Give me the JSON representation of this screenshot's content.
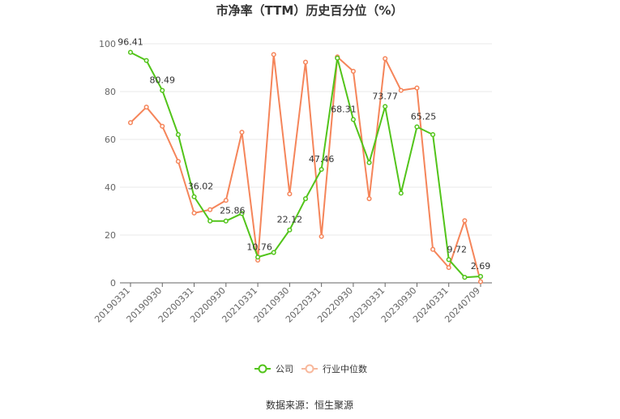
{
  "chart_data": {
    "type": "line",
    "title": "市净率（TTM）历史百分位（%）",
    "xlabel": "",
    "ylabel": "",
    "ylim": [
      0,
      100
    ],
    "yticks": [
      0,
      20,
      40,
      60,
      80,
      100
    ],
    "grid": true,
    "legend_position": "bottom",
    "x": [
      "20190331",
      "20190630",
      "20190930",
      "20191231",
      "20200331",
      "20200630",
      "20200930",
      "20201231",
      "20210331",
      "20210630",
      "20210930",
      "20211231",
      "20220331",
      "20220630",
      "20220930",
      "20221231",
      "20230331",
      "20230630",
      "20230930",
      "20231231",
      "20240331",
      "20240630",
      "20240709"
    ],
    "x_tick_labels": [
      "20190331",
      "20190930",
      "20200331",
      "20200930",
      "20210331",
      "20210930",
      "20220331",
      "20220930",
      "20230331",
      "20230930",
      "20240331",
      "20240709"
    ],
    "x_tick_indices": [
      0,
      2,
      4,
      6,
      8,
      10,
      12,
      14,
      16,
      18,
      20,
      22
    ],
    "series": [
      {
        "name": "公司",
        "color": "#52c41a",
        "values": [
          96.41,
          93.0,
          80.49,
          62.0,
          36.02,
          25.86,
          25.86,
          29.0,
          10.76,
          12.7,
          22.12,
          35.2,
          47.46,
          94.0,
          68.31,
          50.3,
          73.77,
          37.5,
          65.25,
          62.0,
          9.72,
          2.3,
          2.69
        ],
        "labels": {
          "0": "96.41",
          "2": "80.49",
          "4": "36.02",
          "6": "25.86",
          "8": "10.76",
          "10": "22.12",
          "12": "47.46",
          "14": "68.31",
          "16": "73.77",
          "18": "65.25",
          "20": "9.72",
          "22": "2.69"
        }
      },
      {
        "name": "行业中位数",
        "color": "#f5855a",
        "values": [
          67.0,
          73.5,
          65.5,
          50.8,
          29.2,
          30.6,
          34.5,
          63.0,
          9.5,
          95.5,
          37.2,
          92.3,
          19.4,
          94.5,
          88.5,
          35.2,
          93.8,
          80.5,
          81.5,
          14.0,
          6.4,
          26.0,
          0.5
        ]
      }
    ]
  },
  "legend": {
    "company_label": "公司",
    "industry_label": "行业中位数"
  },
  "footer": {
    "source_text": "数据来源：恒生聚源"
  }
}
